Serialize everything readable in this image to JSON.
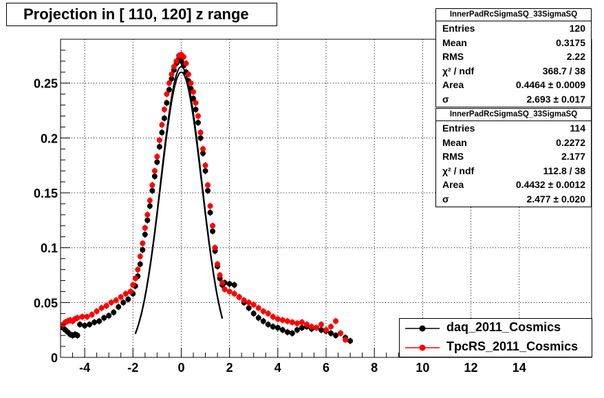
{
  "title": "Projection in [ 110, 120] z range",
  "stats_boxes": [
    {
      "name": "InnerPadRcSigmaSQ_33SigmaSQ",
      "rows": [
        {
          "key": "Entries",
          "value": "120"
        },
        {
          "key": "Mean",
          "value": "0.3175"
        },
        {
          "key": "RMS",
          "value": "2.22"
        },
        {
          "key": "χ² / ndf",
          "value": "368.7 / 38"
        },
        {
          "key": "Area",
          "value": "0.4464 ± 0.0009"
        },
        {
          "key": "σ",
          "value": "2.693 ± 0.017"
        }
      ]
    },
    {
      "name": "InnerPadRcSigmaSQ_33SigmaSQ",
      "rows": [
        {
          "key": "Entries",
          "value": "114"
        },
        {
          "key": "Mean",
          "value": "0.2272"
        },
        {
          "key": "RMS",
          "value": "2.177"
        },
        {
          "key": "χ² / ndf",
          "value": "112.8 / 38"
        },
        {
          "key": "Area",
          "value": "0.4432 ± 0.0012"
        },
        {
          "key": "σ",
          "value": "2.477 ± 0.020"
        }
      ]
    }
  ],
  "legend": [
    {
      "label": "daq_2011_Cosmics",
      "color": "#000000"
    },
    {
      "label": "TpcRS_2011_Cosmics",
      "color": "#ff0000"
    }
  ],
  "chart_data": {
    "type": "scatter",
    "xlim": [
      -5,
      17
    ],
    "ylim": [
      0,
      0.29
    ],
    "x_ticks": [
      -4,
      -2,
      0,
      2,
      4,
      6,
      8,
      10,
      12,
      14
    ],
    "x_tick_labels": [
      "-4",
      "-2",
      "0",
      "2",
      "4",
      "6",
      "8",
      "10",
      "12",
      "14"
    ],
    "y_ticks": [
      0,
      0.05,
      0.1,
      0.15,
      0.2,
      0.25
    ],
    "y_tick_labels": [
      "0",
      "0.05",
      "0.1",
      "0.15",
      "0.2",
      "0.25"
    ],
    "grid": true,
    "legend_position": "bottom-right",
    "series": [
      {
        "name": "daq_2011_Cosmics",
        "color": "#000000",
        "points": [
          [
            -4.9,
            0.027
          ],
          [
            -4.8,
            0.025
          ],
          [
            -4.7,
            0.023
          ],
          [
            -4.6,
            0.021
          ],
          [
            -4.5,
            0.02
          ],
          [
            -4.4,
            0.021
          ],
          [
            -4.3,
            0.02
          ],
          [
            -4.2,
            0.03
          ],
          [
            -4.0,
            0.029
          ],
          [
            -3.8,
            0.03
          ],
          [
            -3.6,
            0.032
          ],
          [
            -3.4,
            0.033
          ],
          [
            -3.2,
            0.036
          ],
          [
            -3.0,
            0.038
          ],
          [
            -2.8,
            0.041
          ],
          [
            -2.6,
            0.046
          ],
          [
            -2.4,
            0.05
          ],
          [
            -2.2,
            0.053
          ],
          [
            -2.0,
            0.058
          ],
          [
            -1.9,
            0.065
          ],
          [
            -1.8,
            0.074
          ],
          [
            -1.7,
            0.085
          ],
          [
            -1.6,
            0.098
          ],
          [
            -1.5,
            0.112
          ],
          [
            -1.4,
            0.125
          ],
          [
            -1.3,
            0.138
          ],
          [
            -1.2,
            0.152
          ],
          [
            -1.1,
            0.165
          ],
          [
            -1.0,
            0.178
          ],
          [
            -0.9,
            0.192
          ],
          [
            -0.8,
            0.205
          ],
          [
            -0.7,
            0.218
          ],
          [
            -0.6,
            0.232
          ],
          [
            -0.5,
            0.244
          ],
          [
            -0.4,
            0.254
          ],
          [
            -0.3,
            0.262
          ],
          [
            -0.2,
            0.268
          ],
          [
            -0.1,
            0.272
          ],
          [
            0.0,
            0.27
          ],
          [
            0.1,
            0.266
          ],
          [
            0.2,
            0.26
          ],
          [
            0.3,
            0.252
          ],
          [
            0.4,
            0.245
          ],
          [
            0.5,
            0.236
          ],
          [
            0.6,
            0.226
          ],
          [
            0.7,
            0.214
          ],
          [
            0.8,
            0.2
          ],
          [
            0.9,
            0.186
          ],
          [
            1.0,
            0.17
          ],
          [
            1.1,
            0.152
          ],
          [
            1.2,
            0.132
          ],
          [
            1.3,
            0.115
          ],
          [
            1.4,
            0.097
          ],
          [
            1.5,
            0.083
          ],
          [
            1.6,
            0.072
          ],
          [
            1.7,
            0.066
          ],
          [
            1.8,
            0.068
          ],
          [
            2.0,
            0.067
          ],
          [
            2.2,
            0.066
          ],
          [
            2.4,
            0.055
          ],
          [
            2.6,
            0.05
          ],
          [
            2.8,
            0.045
          ],
          [
            3.0,
            0.04
          ],
          [
            3.2,
            0.036
          ],
          [
            3.4,
            0.033
          ],
          [
            3.6,
            0.03
          ],
          [
            3.8,
            0.028
          ],
          [
            4.0,
            0.027
          ],
          [
            4.2,
            0.025
          ],
          [
            4.4,
            0.023
          ],
          [
            4.6,
            0.022
          ],
          [
            4.8,
            0.025
          ],
          [
            5.0,
            0.027
          ],
          [
            5.2,
            0.028
          ],
          [
            5.4,
            0.026
          ],
          [
            5.6,
            0.027
          ],
          [
            5.8,
            0.025
          ],
          [
            6.0,
            0.024
          ],
          [
            6.2,
            0.022
          ],
          [
            6.4,
            0.02
          ],
          [
            6.6,
            0.022
          ],
          [
            6.8,
            0.018
          ],
          [
            7.0,
            0.015
          ]
        ]
      },
      {
        "name": "TpcRS_2011_Cosmics",
        "color": "#ff0000",
        "points": [
          [
            -4.9,
            0.03
          ],
          [
            -4.8,
            0.032
          ],
          [
            -4.7,
            0.033
          ],
          [
            -4.6,
            0.034
          ],
          [
            -4.5,
            0.033
          ],
          [
            -4.4,
            0.035
          ],
          [
            -4.3,
            0.036
          ],
          [
            -4.1,
            0.037
          ],
          [
            -3.9,
            0.037
          ],
          [
            -3.7,
            0.039
          ],
          [
            -3.5,
            0.042
          ],
          [
            -3.3,
            0.045
          ],
          [
            -3.1,
            0.047
          ],
          [
            -2.9,
            0.05
          ],
          [
            -2.7,
            0.052
          ],
          [
            -2.5,
            0.055
          ],
          [
            -2.3,
            0.058
          ],
          [
            -2.1,
            0.06
          ],
          [
            -2.0,
            0.066
          ],
          [
            -1.9,
            0.072
          ],
          [
            -1.8,
            0.08
          ],
          [
            -1.7,
            0.092
          ],
          [
            -1.6,
            0.104
          ],
          [
            -1.5,
            0.118
          ],
          [
            -1.4,
            0.13
          ],
          [
            -1.3,
            0.143
          ],
          [
            -1.2,
            0.157
          ],
          [
            -1.1,
            0.17
          ],
          [
            -1.0,
            0.183
          ],
          [
            -0.9,
            0.198
          ],
          [
            -0.8,
            0.212
          ],
          [
            -0.7,
            0.226
          ],
          [
            -0.6,
            0.24
          ],
          [
            -0.5,
            0.25
          ],
          [
            -0.4,
            0.258
          ],
          [
            -0.3,
            0.265
          ],
          [
            -0.2,
            0.27
          ],
          [
            -0.1,
            0.275
          ],
          [
            0.0,
            0.276
          ],
          [
            0.1,
            0.274
          ],
          [
            0.2,
            0.268
          ],
          [
            0.3,
            0.258
          ],
          [
            0.4,
            0.25
          ],
          [
            0.5,
            0.242
          ],
          [
            0.6,
            0.232
          ],
          [
            0.7,
            0.22
          ],
          [
            0.8,
            0.205
          ],
          [
            0.9,
            0.19
          ],
          [
            1.0,
            0.175
          ],
          [
            1.1,
            0.157
          ],
          [
            1.2,
            0.138
          ],
          [
            1.3,
            0.12
          ],
          [
            1.4,
            0.1
          ],
          [
            1.5,
            0.085
          ],
          [
            1.6,
            0.075
          ],
          [
            1.7,
            0.068
          ],
          [
            1.8,
            0.062
          ],
          [
            2.0,
            0.06
          ],
          [
            2.2,
            0.058
          ],
          [
            2.4,
            0.055
          ],
          [
            2.6,
            0.052
          ],
          [
            2.8,
            0.05
          ],
          [
            3.0,
            0.048
          ],
          [
            3.2,
            0.045
          ],
          [
            3.4,
            0.042
          ],
          [
            3.6,
            0.04
          ],
          [
            3.8,
            0.037
          ],
          [
            4.0,
            0.035
          ],
          [
            4.2,
            0.034
          ],
          [
            4.4,
            0.033
          ],
          [
            4.6,
            0.032
          ],
          [
            4.8,
            0.031
          ],
          [
            5.0,
            0.032
          ],
          [
            5.2,
            0.03
          ],
          [
            5.4,
            0.028
          ],
          [
            5.6,
            0.027
          ],
          [
            5.8,
            0.03
          ],
          [
            6.0,
            0.025
          ],
          [
            6.2,
            0.028
          ],
          [
            6.4,
            0.033
          ],
          [
            6.6,
            0.022
          ],
          [
            6.8,
            0.016
          ]
        ]
      }
    ],
    "fit_curves": [
      {
        "name": "daq_2011_Cosmics fit",
        "color": "#000000",
        "peak_x": 0.0,
        "peak_y": 0.265,
        "sigma": 0.85,
        "floor": 0.0
      },
      {
        "name": "TpcRS_2011_Cosmics fit",
        "color": "#000000",
        "peak_x": 0.0,
        "peak_y": 0.26,
        "sigma": 0.85,
        "floor": 0.0
      }
    ]
  }
}
